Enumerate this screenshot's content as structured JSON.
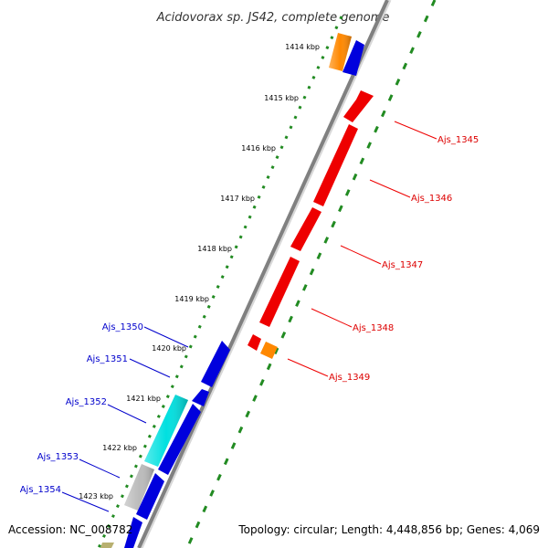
{
  "title": "Acidovorax sp. JS42, complete genome",
  "footer": {
    "accession": "Accession: NC_008782",
    "topology": "Topology: circular; Length: 4,448,856 bp; Genes: 4,069"
  },
  "colors": {
    "reverse_gene": "#ee0000",
    "forward_gene": "#0000dd",
    "orange_gene": "#ff8800",
    "cyan_gene": "#00e0e0",
    "gray_gene": "#bbbbbb",
    "olive_gene": "#b8b070",
    "backbone": "#808080",
    "dotted_track": "#228b22",
    "red_label": "#dd0000",
    "blue_label": "#0000cc"
  },
  "ticks": [
    "1414 kbp",
    "1415 kbp",
    "1416 kbp",
    "1417 kbp",
    "1418 kbp",
    "1419 kbp",
    "1420 kbp",
    "1421 kbp",
    "1422 kbp",
    "1423 kbp"
  ],
  "genes_right": [
    {
      "label": "Ajs_1345"
    },
    {
      "label": "Ajs_1346"
    },
    {
      "label": "Ajs_1347"
    },
    {
      "label": "Ajs_1348"
    },
    {
      "label": "Ajs_1349"
    }
  ],
  "genes_left": [
    {
      "label": "Ajs_1350"
    },
    {
      "label": "Ajs_1351"
    },
    {
      "label": "Ajs_1352"
    },
    {
      "label": "Ajs_1353"
    },
    {
      "label": "Ajs_1354"
    }
  ]
}
